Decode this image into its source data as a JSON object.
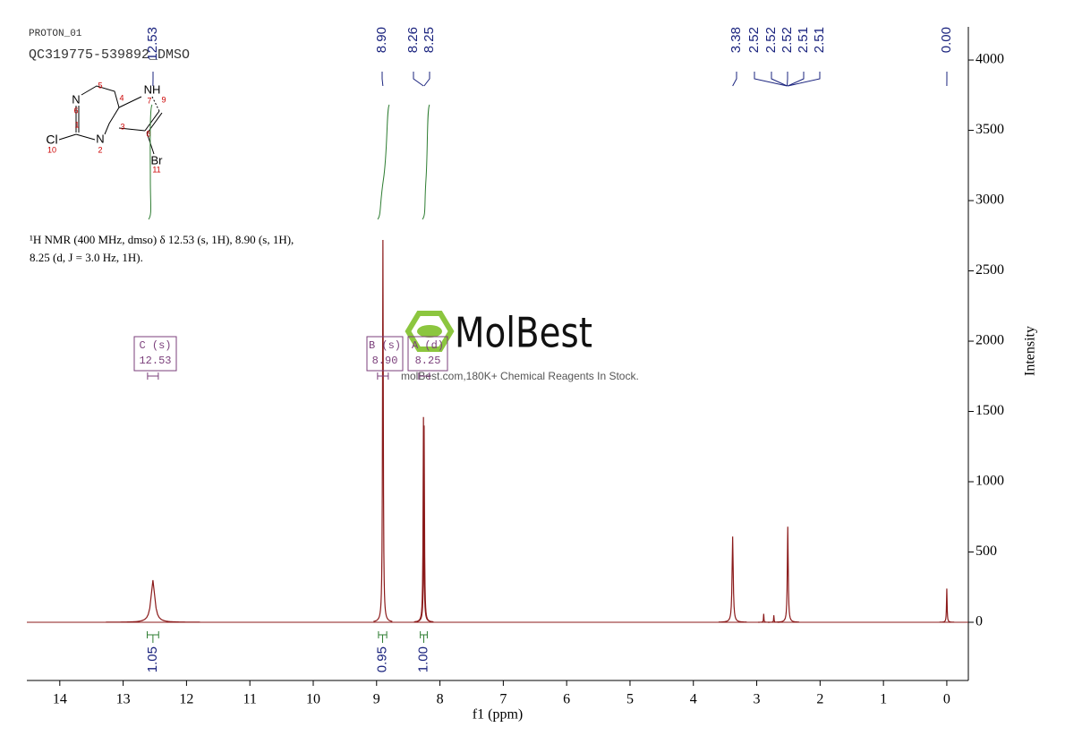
{
  "chart_data": {
    "type": "nmr",
    "run_name": "PROTON_01",
    "sample_name": "QC319775-539892_DMSO",
    "xlabel": "f1 (ppm)",
    "ylabel": "Intensity",
    "xlim": [
      14.52,
      -0.34
    ],
    "ylim": [
      -414,
      4236
    ],
    "xticks": [
      14,
      13,
      12,
      11,
      10,
      9,
      8,
      7,
      6,
      5,
      4,
      3,
      2,
      1,
      0
    ],
    "yticks": [
      0,
      500,
      1000,
      1500,
      2000,
      2500,
      3000,
      3500,
      4000
    ],
    "color": "#8b1a1a",
    "peaks": {
      "ppm": [
        12.53,
        8.9,
        8.26,
        8.25,
        3.38,
        2.89,
        2.73,
        2.51,
        0.0
      ],
      "heights": [
        300,
        2720,
        1460,
        1400,
        610,
        60,
        50,
        680,
        240
      ]
    },
    "peak_labels": [
      {
        "value": 12.53,
        "label": "12.53"
      },
      {
        "value": 8.9,
        "label": "8.90"
      },
      {
        "value": 8.26,
        "label": "8.26"
      },
      {
        "value": 8.25,
        "label": "8.25"
      },
      {
        "value": 3.38,
        "label": "3.38"
      },
      {
        "value": 2.52,
        "label": "2.52"
      },
      {
        "value": 2.52,
        "label": "2.52"
      },
      {
        "value": 2.52,
        "label": "2.52"
      },
      {
        "value": 2.51,
        "label": "2.51"
      },
      {
        "value": 2.51,
        "label": "2.51"
      },
      {
        "value": 0.0,
        "label": "0.00"
      }
    ],
    "integrals": [
      {
        "range": [
          12.62,
          12.44
        ],
        "value": 1.05,
        "label": "1.05"
      },
      {
        "range": [
          8.97,
          8.84
        ],
        "value": 0.95,
        "label": "0.95"
      },
      {
        "range": [
          8.31,
          8.2
        ],
        "value": 1.0,
        "label": "1.00"
      }
    ],
    "multiplets": [
      {
        "name": "C (s)",
        "shift": "12.53"
      },
      {
        "name": "B (s)",
        "shift": "8.90"
      },
      {
        "name": "A (d)",
        "shift": "8.25"
      }
    ],
    "annotation": [
      "¹H NMR (400 MHz, dmso) δ 12.53 (s, 1H), 8.90 (s, 1H),",
      "8.25 (d, J = 3.0 Hz, 1H)."
    ],
    "watermark": {
      "brand": "MolBest",
      "tagline": "molBest.com,180K+ Chemical Reagents In Stock."
    },
    "structure_atoms": [
      "N",
      "6",
      "1",
      "Cl",
      "10",
      "N",
      "2",
      "3",
      "4",
      "5",
      "NH",
      "7",
      "8",
      "9",
      "Br",
      "11"
    ]
  }
}
